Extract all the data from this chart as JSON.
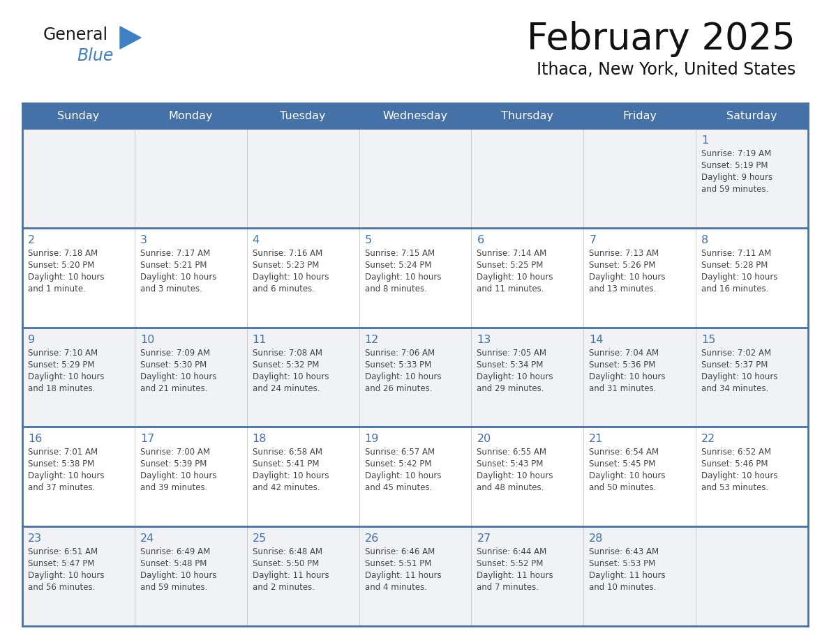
{
  "title": "February 2025",
  "subtitle": "Ithaca, New York, United States",
  "header_bg": "#4472a8",
  "header_text_color": "#ffffff",
  "row_separator_color": "#4472a8",
  "cell_alt_bg": "#f0f2f5",
  "cell_bg": "#ffffff",
  "day_number_color": "#4472a8",
  "info_text_color": "#444444",
  "logo_general_color": "#1a1a1a",
  "logo_blue_color": "#3d80c4",
  "days_of_week": [
    "Sunday",
    "Monday",
    "Tuesday",
    "Wednesday",
    "Thursday",
    "Friday",
    "Saturday"
  ],
  "weeks": [
    [
      {
        "day": null,
        "info": null
      },
      {
        "day": null,
        "info": null
      },
      {
        "day": null,
        "info": null
      },
      {
        "day": null,
        "info": null
      },
      {
        "day": null,
        "info": null
      },
      {
        "day": null,
        "info": null
      },
      {
        "day": 1,
        "info": "Sunrise: 7:19 AM\nSunset: 5:19 PM\nDaylight: 9 hours\nand 59 minutes."
      }
    ],
    [
      {
        "day": 2,
        "info": "Sunrise: 7:18 AM\nSunset: 5:20 PM\nDaylight: 10 hours\nand 1 minute."
      },
      {
        "day": 3,
        "info": "Sunrise: 7:17 AM\nSunset: 5:21 PM\nDaylight: 10 hours\nand 3 minutes."
      },
      {
        "day": 4,
        "info": "Sunrise: 7:16 AM\nSunset: 5:23 PM\nDaylight: 10 hours\nand 6 minutes."
      },
      {
        "day": 5,
        "info": "Sunrise: 7:15 AM\nSunset: 5:24 PM\nDaylight: 10 hours\nand 8 minutes."
      },
      {
        "day": 6,
        "info": "Sunrise: 7:14 AM\nSunset: 5:25 PM\nDaylight: 10 hours\nand 11 minutes."
      },
      {
        "day": 7,
        "info": "Sunrise: 7:13 AM\nSunset: 5:26 PM\nDaylight: 10 hours\nand 13 minutes."
      },
      {
        "day": 8,
        "info": "Sunrise: 7:11 AM\nSunset: 5:28 PM\nDaylight: 10 hours\nand 16 minutes."
      }
    ],
    [
      {
        "day": 9,
        "info": "Sunrise: 7:10 AM\nSunset: 5:29 PM\nDaylight: 10 hours\nand 18 minutes."
      },
      {
        "day": 10,
        "info": "Sunrise: 7:09 AM\nSunset: 5:30 PM\nDaylight: 10 hours\nand 21 minutes."
      },
      {
        "day": 11,
        "info": "Sunrise: 7:08 AM\nSunset: 5:32 PM\nDaylight: 10 hours\nand 24 minutes."
      },
      {
        "day": 12,
        "info": "Sunrise: 7:06 AM\nSunset: 5:33 PM\nDaylight: 10 hours\nand 26 minutes."
      },
      {
        "day": 13,
        "info": "Sunrise: 7:05 AM\nSunset: 5:34 PM\nDaylight: 10 hours\nand 29 minutes."
      },
      {
        "day": 14,
        "info": "Sunrise: 7:04 AM\nSunset: 5:36 PM\nDaylight: 10 hours\nand 31 minutes."
      },
      {
        "day": 15,
        "info": "Sunrise: 7:02 AM\nSunset: 5:37 PM\nDaylight: 10 hours\nand 34 minutes."
      }
    ],
    [
      {
        "day": 16,
        "info": "Sunrise: 7:01 AM\nSunset: 5:38 PM\nDaylight: 10 hours\nand 37 minutes."
      },
      {
        "day": 17,
        "info": "Sunrise: 7:00 AM\nSunset: 5:39 PM\nDaylight: 10 hours\nand 39 minutes."
      },
      {
        "day": 18,
        "info": "Sunrise: 6:58 AM\nSunset: 5:41 PM\nDaylight: 10 hours\nand 42 minutes."
      },
      {
        "day": 19,
        "info": "Sunrise: 6:57 AM\nSunset: 5:42 PM\nDaylight: 10 hours\nand 45 minutes."
      },
      {
        "day": 20,
        "info": "Sunrise: 6:55 AM\nSunset: 5:43 PM\nDaylight: 10 hours\nand 48 minutes."
      },
      {
        "day": 21,
        "info": "Sunrise: 6:54 AM\nSunset: 5:45 PM\nDaylight: 10 hours\nand 50 minutes."
      },
      {
        "day": 22,
        "info": "Sunrise: 6:52 AM\nSunset: 5:46 PM\nDaylight: 10 hours\nand 53 minutes."
      }
    ],
    [
      {
        "day": 23,
        "info": "Sunrise: 6:51 AM\nSunset: 5:47 PM\nDaylight: 10 hours\nand 56 minutes."
      },
      {
        "day": 24,
        "info": "Sunrise: 6:49 AM\nSunset: 5:48 PM\nDaylight: 10 hours\nand 59 minutes."
      },
      {
        "day": 25,
        "info": "Sunrise: 6:48 AM\nSunset: 5:50 PM\nDaylight: 11 hours\nand 2 minutes."
      },
      {
        "day": 26,
        "info": "Sunrise: 6:46 AM\nSunset: 5:51 PM\nDaylight: 11 hours\nand 4 minutes."
      },
      {
        "day": 27,
        "info": "Sunrise: 6:44 AM\nSunset: 5:52 PM\nDaylight: 11 hours\nand 7 minutes."
      },
      {
        "day": 28,
        "info": "Sunrise: 6:43 AM\nSunset: 5:53 PM\nDaylight: 11 hours\nand 10 minutes."
      },
      {
        "day": null,
        "info": null
      }
    ]
  ]
}
